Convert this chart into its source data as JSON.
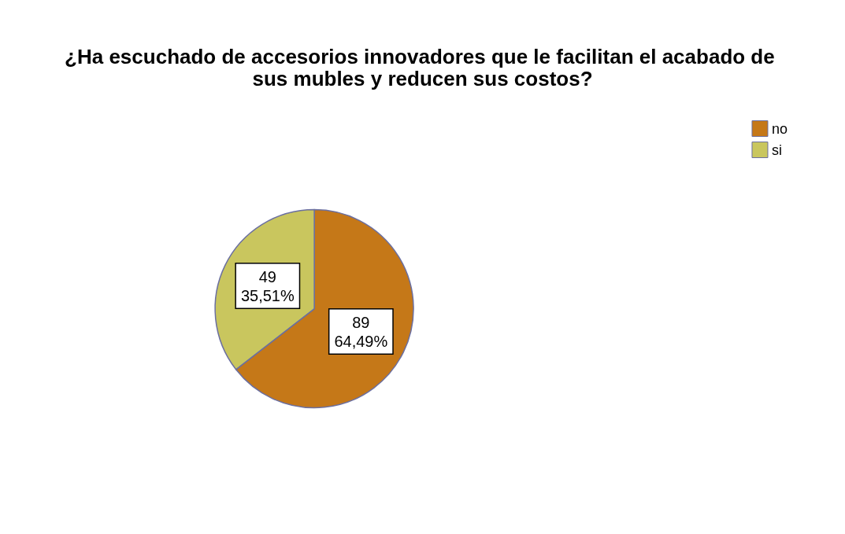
{
  "chart_data": {
    "type": "pie",
    "title": "¿Ha escuchado de accesorios innovadores que le facilitan el acabado de sus mubles y reducen sus costos?",
    "categories": [
      "no",
      "si"
    ],
    "values": [
      89,
      49
    ],
    "colors": [
      "#c57818",
      "#c9c65e"
    ],
    "value_labels": [
      "89\n64,49%",
      "49\n35,51%"
    ],
    "legend": "top right"
  }
}
